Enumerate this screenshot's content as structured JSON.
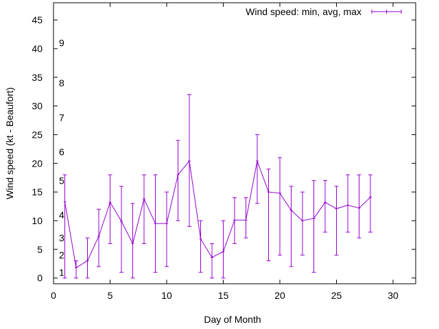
{
  "chart_data": {
    "type": "line",
    "title": "",
    "xlabel": "Day of Month",
    "ylabel": "Wind speed (kt - Beaufort)",
    "xlim": [
      0,
      32
    ],
    "ylim": [
      -1,
      48
    ],
    "x_ticks": [
      0,
      5,
      10,
      15,
      20,
      25,
      30
    ],
    "y_ticks": [
      0,
      5,
      10,
      15,
      20,
      25,
      30,
      35,
      40,
      45
    ],
    "legend": {
      "label": "Wind speed: min, avg, max",
      "position": "top-right"
    },
    "series_color": "#9400d3",
    "beaufort_labels": [
      {
        "label": "1",
        "value": 1
      },
      {
        "label": "2",
        "value": 4
      },
      {
        "label": "3",
        "value": 7
      },
      {
        "label": "4",
        "value": 11
      },
      {
        "label": "5",
        "value": 17
      },
      {
        "label": "6",
        "value": 22
      },
      {
        "label": "7",
        "value": 28
      },
      {
        "label": "8",
        "value": 34
      },
      {
        "label": "9",
        "value": 41
      }
    ],
    "series": [
      {
        "name": "Wind speed: min, avg, max",
        "x": [
          1,
          2,
          3,
          4,
          5,
          6,
          7,
          8,
          9,
          10,
          11,
          12,
          13,
          14,
          15,
          16,
          17,
          18,
          19,
          20,
          21,
          22,
          23,
          24,
          25,
          26,
          27,
          28
        ],
        "avg": [
          13.3,
          1.8,
          3.0,
          7.3,
          13.2,
          9.9,
          6.0,
          13.8,
          9.5,
          9.5,
          18.0,
          20.4,
          6.8,
          3.6,
          4.6,
          10.1,
          10.1,
          20.4,
          15.0,
          14.8,
          11.8,
          10.0,
          10.4,
          13.2,
          12.1,
          12.7,
          12.2,
          14.1
        ],
        "min": [
          0,
          0,
          0,
          2,
          6,
          1,
          0,
          6,
          1,
          2,
          10,
          9,
          1,
          0,
          0,
          6,
          7,
          13,
          3,
          4,
          2,
          4,
          1,
          8,
          4,
          8,
          7,
          8
        ],
        "max": [
          18,
          3,
          7,
          12,
          18,
          16,
          13,
          18,
          18,
          15,
          24,
          32,
          10,
          6,
          10,
          14,
          14,
          25,
          19,
          21,
          16,
          15,
          17,
          17,
          16,
          18,
          18,
          18
        ]
      }
    ]
  }
}
